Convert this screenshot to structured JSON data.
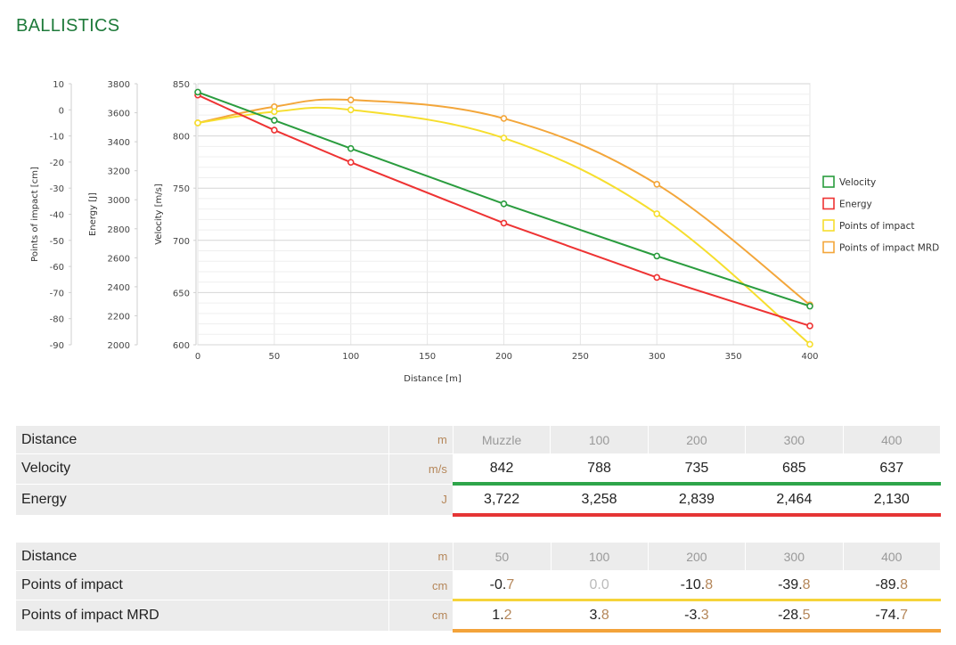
{
  "page": {
    "title": "BALLISTICS"
  },
  "colors": {
    "velocity": "#2a9c3e",
    "energy": "#ee3333",
    "poi": "#f6de2e",
    "poi_mrd": "#f3a63a"
  },
  "chart_data": {
    "type": "line",
    "xlabel": "Distance [m]",
    "xlim": [
      0,
      400
    ],
    "x_ticks": [
      0,
      50,
      100,
      150,
      200,
      250,
      300,
      350,
      400
    ],
    "x": [
      0,
      50,
      100,
      200,
      300,
      400
    ],
    "axes": [
      {
        "id": "poi",
        "label": "Points of impact [cm]",
        "ylim": [
          -90,
          10
        ],
        "ticks": [
          10,
          0,
          -10,
          -20,
          -30,
          -40,
          -50,
          -60,
          -70,
          -80,
          -90
        ]
      },
      {
        "id": "energy",
        "label": "Energy [J]",
        "ylim": [
          2000,
          3800
        ],
        "ticks": [
          3800,
          3600,
          3400,
          3200,
          3000,
          2800,
          2600,
          2400,
          2200,
          2000
        ]
      },
      {
        "id": "velocity",
        "label": "Velocity [m/s]",
        "ylim": [
          600,
          850
        ],
        "ticks": [
          850,
          800,
          750,
          700,
          650,
          600
        ]
      }
    ],
    "series": [
      {
        "name": "Velocity",
        "axis": "velocity",
        "color": "#2a9c3e",
        "values": [
          842,
          815,
          788,
          735,
          685,
          637
        ]
      },
      {
        "name": "Energy",
        "axis": "energy",
        "color": "#ee3333",
        "values": [
          3722,
          3480,
          3258,
          2839,
          2464,
          2130
        ]
      },
      {
        "name": "Points of impact",
        "axis": "poi",
        "color": "#f6de2e",
        "values": [
          -5,
          -0.7,
          0.0,
          -10.8,
          -39.8,
          -89.8
        ]
      },
      {
        "name": "Points of impact MRD",
        "axis": "poi",
        "color": "#f3a63a",
        "values": [
          -5,
          1.2,
          3.8,
          -3.3,
          -28.5,
          -74.7
        ]
      }
    ],
    "legend": "right"
  },
  "table1": {
    "header": {
      "label": "Distance",
      "unit": "m",
      "values": [
        "Muzzle",
        "100",
        "200",
        "300",
        "400"
      ]
    },
    "rows": [
      {
        "label": "Velocity",
        "unit": "m/s",
        "values": [
          "842",
          "788",
          "735",
          "685",
          "637"
        ]
      },
      {
        "label": "Energy",
        "unit": "J",
        "values": [
          "3,722",
          "3,258",
          "2,839",
          "2,464",
          "2,130"
        ]
      }
    ]
  },
  "table2": {
    "header": {
      "label": "Distance",
      "unit": "m",
      "values": [
        "50",
        "100",
        "200",
        "300",
        "400"
      ]
    },
    "rows": [
      {
        "label": "Points of impact",
        "unit": "cm",
        "values": [
          "-0.7",
          "0.0",
          "-10.8",
          "-39.8",
          "-89.8"
        ]
      },
      {
        "label": "Points of impact MRD",
        "unit": "cm",
        "values": [
          "1.2",
          "3.8",
          "-3.3",
          "-28.5",
          "-74.7"
        ]
      }
    ]
  }
}
